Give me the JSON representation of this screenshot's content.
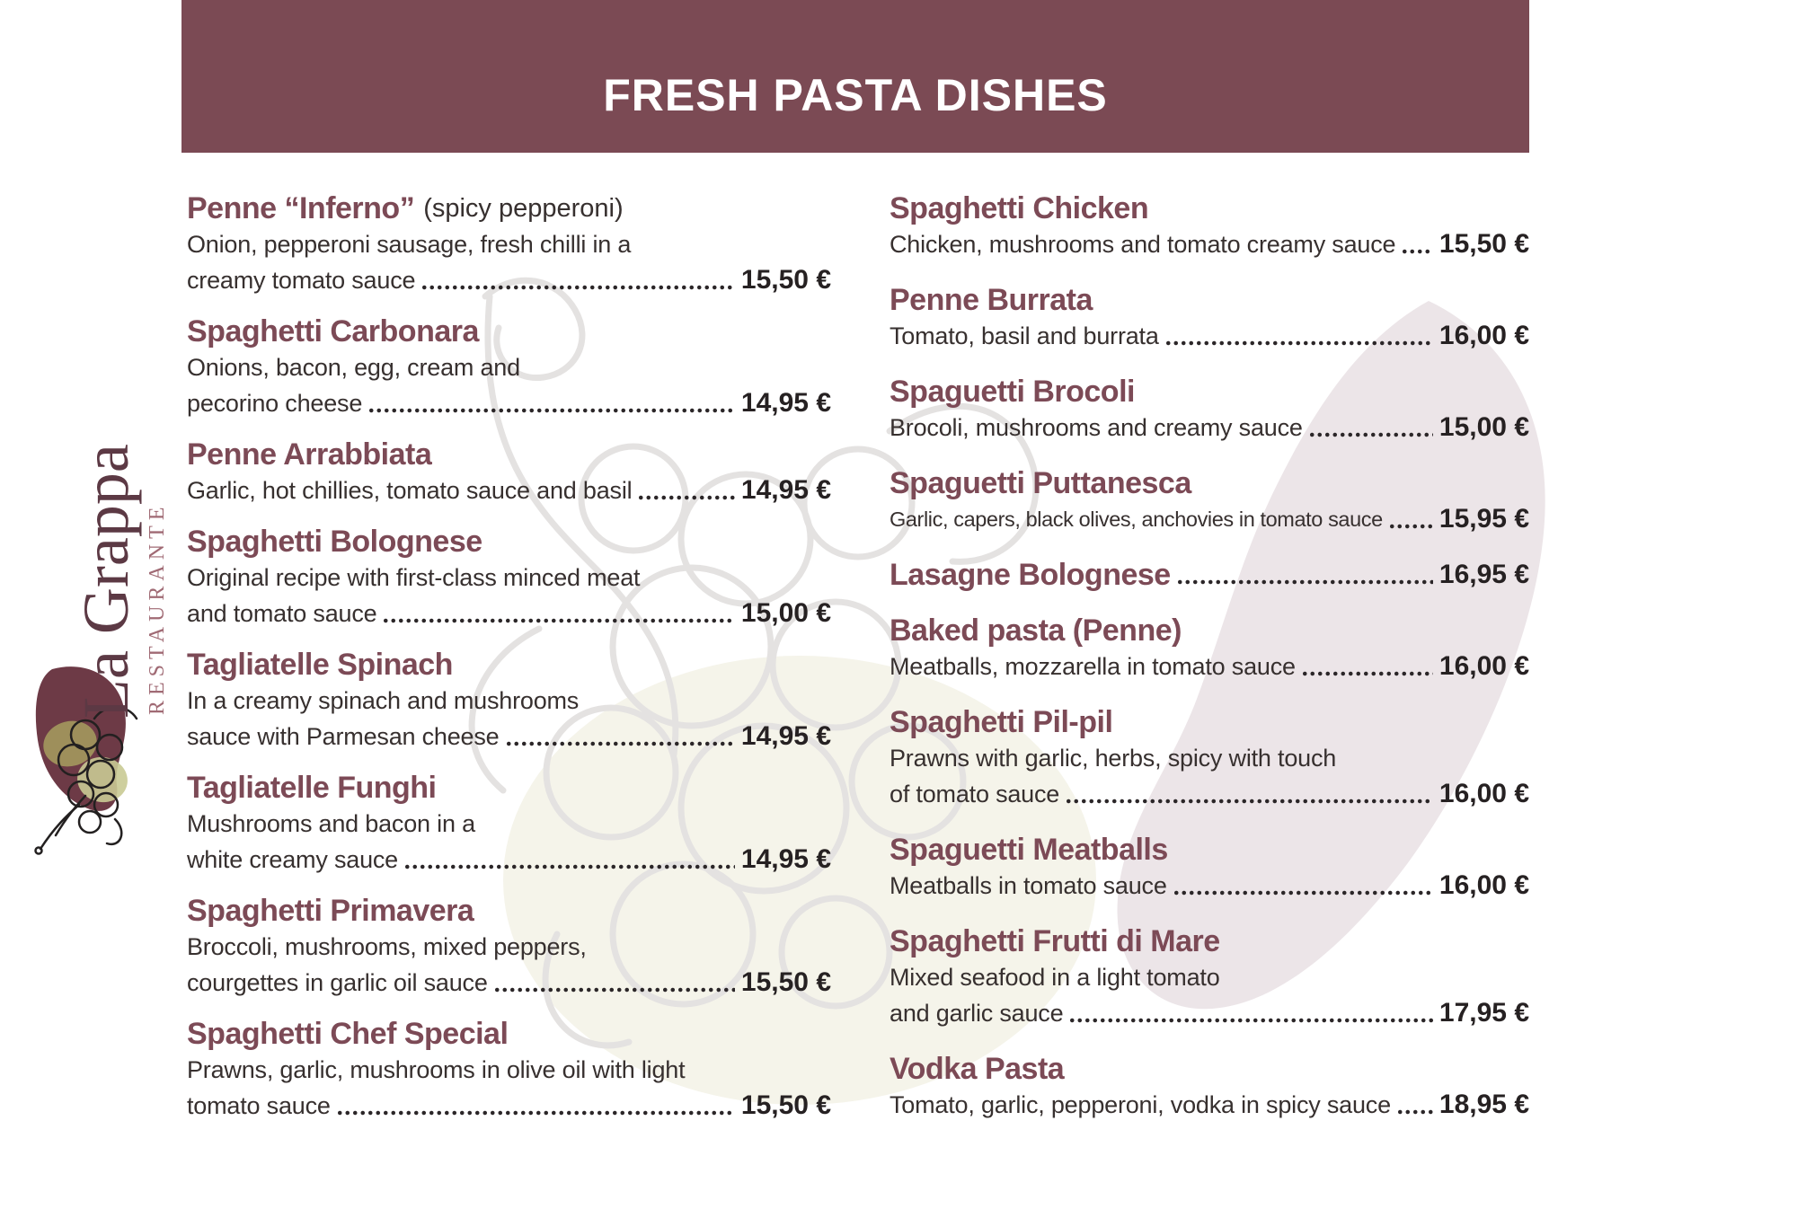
{
  "header": {
    "title": "FRESH PASTA DISHES"
  },
  "brand": {
    "name": "La Grappa",
    "subtitle": "RESTAURANTE"
  },
  "colors": {
    "band": "#7b4a54",
    "dish_title": "#7c4a56",
    "body_text": "#37302f",
    "price_text": "#262122",
    "brand_dark": "#5c3944",
    "brand_light": "#a06a74",
    "blob_mauve": "#ece5e8",
    "blob_cream": "#f5f4ea",
    "watermark_gray": "#e4e2e1",
    "logo_blob_maroon": "#6d3a46",
    "olive_dark": "#a79f5f",
    "olive_light": "#c9ca93"
  },
  "menu": {
    "left": [
      {
        "name": "Penne “Inferno”",
        "suffix": "(spicy pepperoni)",
        "desc": [
          "Onion, pepperoni sausage, fresh chilli in a"
        ],
        "last_line": "creamy tomato sauce",
        "price": "15,50 €"
      },
      {
        "name": "Spaghetti Carbonara",
        "suffix": "",
        "desc": [
          "Onions, bacon, egg, cream and"
        ],
        "last_line": "pecorino cheese",
        "price": "14,95 €"
      },
      {
        "name": "Penne Arrabbiata",
        "suffix": "",
        "desc": [],
        "last_line": "Garlic, hot chillies, tomato sauce and basil",
        "price": "14,95 €"
      },
      {
        "name": "Spaghetti Bolognese",
        "suffix": "",
        "desc": [
          "Original recipe with first-class minced meat"
        ],
        "last_line": "and tomato sauce",
        "price": "15,00 €"
      },
      {
        "name": "Tagliatelle Spinach",
        "suffix": "",
        "desc": [
          "In a creamy spinach and mushrooms"
        ],
        "last_line": "sauce with Parmesan cheese",
        "price": "14,95 €"
      },
      {
        "name": "Tagliatelle Funghi",
        "suffix": "",
        "desc": [
          "Mushrooms and bacon in a"
        ],
        "last_line": "white creamy sauce",
        "price": "14,95 €"
      },
      {
        "name": "Spaghetti Primavera",
        "suffix": "",
        "desc": [
          "Broccoli, mushrooms, mixed peppers,"
        ],
        "last_line": "courgettes in garlic oil sauce",
        "price": "15,50 €"
      },
      {
        "name": "Spaghetti Chef Special",
        "suffix": "",
        "desc": [
          "Prawns, garlic, mushrooms in olive oil with light"
        ],
        "last_line": "tomato sauce",
        "price": "15,50 €"
      }
    ],
    "right": [
      {
        "name": "Spaghetti Chicken",
        "suffix": "",
        "desc": [],
        "last_line": "Chicken, mushrooms and tomato creamy sauce",
        "price": "15,50 €"
      },
      {
        "name": "Penne Burrata",
        "suffix": "",
        "desc": [],
        "last_line": "Tomato, basil and burrata",
        "price": "16,00 €"
      },
      {
        "name": "Spaguetti Brocoli",
        "suffix": "",
        "desc": [],
        "last_line": "Brocoli, mushrooms and creamy sauce",
        "price": "15,00 €"
      },
      {
        "name": "Spaguetti Puttanesca",
        "suffix": "",
        "desc": [],
        "last_line": "Garlic, capers, black olives, anchovies in tomato sauce",
        "price": "15,95 €"
      },
      {
        "name": "Lasagne Bolognese",
        "suffix": "",
        "desc": [],
        "last_line": "",
        "price": "16,95 €"
      },
      {
        "name": "Baked pasta (Penne)",
        "suffix": "",
        "desc": [],
        "last_line": "Meatballs, mozzarella in tomato sauce",
        "price": "16,00 €"
      },
      {
        "name": "Spaghetti Pil-pil",
        "suffix": "",
        "desc": [
          "Prawns with garlic, herbs, spicy with touch"
        ],
        "last_line": "of tomato sauce",
        "price": "16,00 €"
      },
      {
        "name": "Spaguetti Meatballs",
        "suffix": "",
        "desc": [],
        "last_line": "Meatballs in tomato sauce",
        "price": "16,00 €"
      },
      {
        "name": "Spaghetti Frutti di Mare",
        "suffix": "",
        "desc": [
          "Mixed seafood in a light tomato"
        ],
        "last_line": "and garlic sauce",
        "price": "17,95 €"
      },
      {
        "name": "Vodka Pasta",
        "suffix": "",
        "desc": [],
        "last_line": "Tomato, garlic, pepperoni, vodka in spicy sauce",
        "price": "18,95 €"
      }
    ]
  }
}
